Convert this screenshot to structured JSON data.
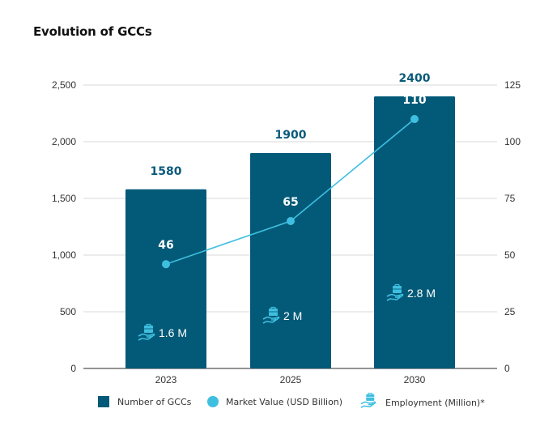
{
  "colors": {
    "bar": "#035a78",
    "line": "#3fbfe0",
    "icon": "#3fbfe0",
    "grid": "#d9d9d9",
    "axis": "#555555"
  },
  "chart_data": {
    "type": "bar+line",
    "title": "Evolution of GCCs",
    "categories": [
      "2023",
      "2025",
      "2030"
    ],
    "series": [
      {
        "name": "Number of GCCs",
        "type": "bar",
        "axis": "left",
        "values": [
          1580,
          1900,
          2400
        ],
        "labels": [
          "1580",
          "1900",
          "2400"
        ]
      },
      {
        "name": "Market Value (USD Billion)",
        "type": "line",
        "axis": "right",
        "values": [
          46,
          65,
          110
        ],
        "labels": [
          "46",
          "65",
          "110"
        ]
      },
      {
        "name": "Employment (Million)*",
        "type": "annotation",
        "values": [
          1.6,
          2,
          2.8
        ],
        "labels": [
          "1.6 M",
          "2 M",
          "2.8 M"
        ]
      }
    ],
    "y_left": {
      "range": [
        0,
        2500
      ],
      "ticks": [
        0,
        500,
        1000,
        1500,
        2000,
        2500
      ],
      "tick_labels": [
        "0",
        "500",
        "1,000",
        "1,500",
        "2,000",
        "2,500"
      ]
    },
    "y_right": {
      "range": [
        0,
        125
      ],
      "ticks": [
        0,
        25,
        50,
        75,
        100,
        125
      ],
      "tick_labels": [
        "0",
        "25",
        "50",
        "75",
        "100",
        "125"
      ]
    },
    "xlabel": "",
    "ylabel": "",
    "grid": true,
    "legend": "bottom"
  },
  "legend": {
    "items": [
      {
        "label": "Number of GCCs",
        "icon": "square-swatch"
      },
      {
        "label": "Market Value (USD Billion)",
        "icon": "circle-dot"
      },
      {
        "label": "Employment (Million)*",
        "icon": "hand-briefcase-icon"
      }
    ]
  }
}
